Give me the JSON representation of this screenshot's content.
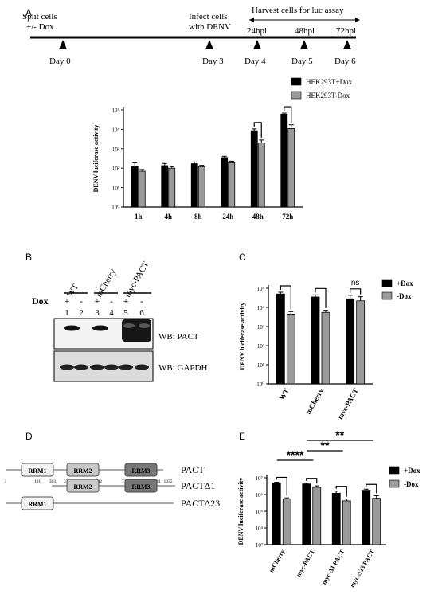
{
  "panels": {
    "A": "A",
    "B": "B",
    "C": "C",
    "D": "D",
    "E": "E"
  },
  "timeline": {
    "split_line1": "Split cells",
    "split_line2": "+/- Dox",
    "infect_line1": "Infect cells",
    "infect_line2": "with DENV",
    "harvest": "Harvest cells for luc assay",
    "hpi": [
      "24hpi",
      "48hpi",
      "72hpi"
    ],
    "days": [
      "Day 0",
      "Day 3",
      "Day 4",
      "Day 5",
      "Day 6"
    ]
  },
  "western": {
    "lanes_top": [
      "WT",
      "mCherry",
      "myc-PACT"
    ],
    "dox_label": "Dox",
    "signs": [
      "+",
      "-",
      "+",
      "-",
      "+",
      "-"
    ],
    "lane_numbers": [
      "1",
      "2",
      "3",
      "4",
      "5",
      "6"
    ],
    "blot1": "WB: PACT",
    "blot2": "WB: GAPDH"
  },
  "domains": {
    "names": [
      "RRM1",
      "RRM2",
      "RRM3"
    ],
    "constructs": [
      "PACT",
      "PACTΔ1",
      "PACTΔ23"
    ],
    "positions": [
      "1",
      "101",
      "303",
      "376",
      "582",
      "718",
      "924",
      "1035"
    ]
  },
  "chart_data": [
    {
      "panel": "A",
      "type": "bar",
      "ylabel": "DENV luciferase activity",
      "yscale": "log",
      "ylim": [
        1,
        100000
      ],
      "yticks": [
        "10⁰",
        "10¹",
        "10²",
        "10³",
        "10⁴",
        "10⁵"
      ],
      "categories": [
        "1h",
        "4h",
        "8h",
        "24h",
        "48h",
        "72h"
      ],
      "series": [
        {
          "name": "HEK293T+Dox",
          "color": "#000000",
          "values": [
            120,
            135,
            170,
            350,
            8500,
            60000
          ],
          "err": [
            70,
            40,
            40,
            60,
            2000,
            8000
          ]
        },
        {
          "name": "HEK293T-Dox",
          "color": "#9a9a9a",
          "values": [
            70,
            100,
            120,
            190,
            2000,
            11000
          ],
          "err": [
            15,
            20,
            20,
            40,
            800,
            6000
          ]
        }
      ],
      "brackets": [
        4,
        5
      ]
    },
    {
      "panel": "C",
      "type": "bar",
      "ylabel": "DENV luciferase activity",
      "yscale": "log",
      "ylim": [
        1,
        100000
      ],
      "yticks": [
        "10⁰",
        "10¹",
        "10²",
        "10³",
        "10⁴",
        "10⁵"
      ],
      "categories": [
        "WT",
        "mCherry",
        "myc-PACT"
      ],
      "series": [
        {
          "name": "+Dox",
          "color": "#000000",
          "values": [
            50000,
            35000,
            28000
          ],
          "err": [
            12000,
            10000,
            15000
          ]
        },
        {
          "name": "-Dox",
          "color": "#9a9a9a",
          "values": [
            4500,
            5500,
            22000
          ],
          "err": [
            1500,
            1500,
            14000
          ]
        }
      ],
      "brackets": [
        0,
        1,
        2
      ],
      "annotations": [
        "ns"
      ]
    },
    {
      "panel": "E",
      "type": "bar",
      "ylabel": "DENV luciferase activity",
      "yscale": "log",
      "ylim": [
        1000,
        10000000
      ],
      "yticks": [
        "10³",
        "10⁴",
        "10⁵",
        "10⁶",
        "10⁷"
      ],
      "categories": [
        "mCherry",
        "myc-PACT",
        "myc-Δ1 PACT",
        "myc-Δ23 PACT"
      ],
      "series": [
        {
          "name": "+Dox",
          "color": "#000000",
          "values": [
            4800000,
            4300000,
            1200000,
            1800000
          ],
          "err": [
            700000,
            500000,
            400000,
            300000
          ]
        },
        {
          "name": "-Dox",
          "color": "#9a9a9a",
          "values": [
            550000,
            2700000,
            420000,
            600000
          ],
          "err": [
            80000,
            600000,
            120000,
            250000
          ]
        }
      ],
      "brackets": [
        0,
        1,
        2,
        3
      ],
      "significance": [
        {
          "label": "****",
          "from": 0,
          "to": 1
        },
        {
          "label": "**",
          "from": 1,
          "to": 2
        },
        {
          "label": "**",
          "from": 1,
          "to": 3
        }
      ]
    }
  ]
}
